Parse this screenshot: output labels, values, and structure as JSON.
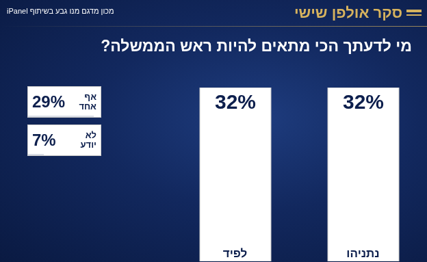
{
  "chart_data": {
    "type": "bar",
    "header": "סקר אולפן שישי",
    "source": "מכון מדגם מנו גבע בשיתוף iPanel",
    "title": "מי לדעתך הכי מתאים להיות ראש הממשלה?",
    "categories": [
      "נתניהו",
      "לפיד"
    ],
    "values": [
      32,
      32
    ],
    "value_labels": [
      "32%",
      "32%"
    ],
    "color": "#ffffff",
    "ylim": [
      0,
      32
    ],
    "data_labels": true,
    "tick_labels": "x",
    "other_answers": [
      {
        "label": "אף אחד",
        "value": 29,
        "value_label": "29%"
      },
      {
        "label": "לא יודע",
        "value": 7,
        "value_label": "7%"
      }
    ]
  }
}
